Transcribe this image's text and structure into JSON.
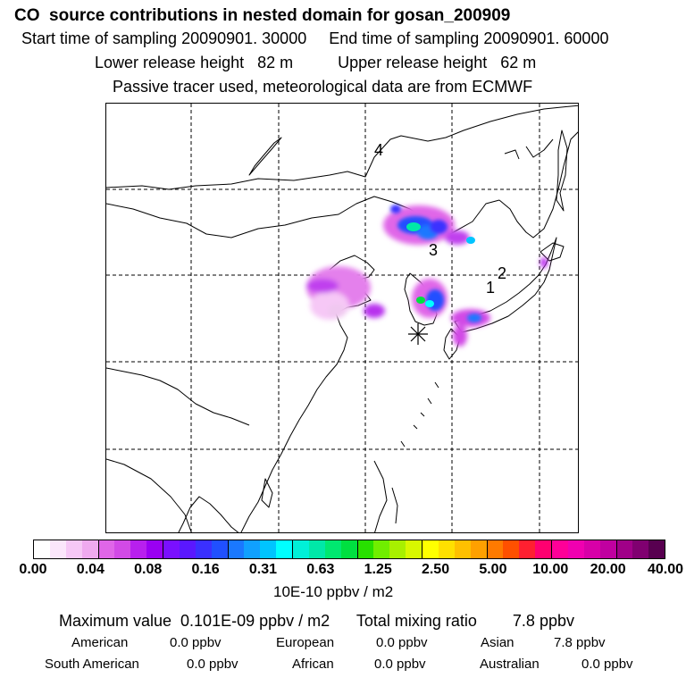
{
  "title": "CO  source contributions in nested domain for gosan_200909",
  "sampling": {
    "start": "Start time of sampling 20090901. 30000",
    "end": "End time of sampling 20090901. 60000"
  },
  "release": {
    "lower": "Lower release height   82 m",
    "upper": "Upper release height   62 m"
  },
  "tracer_note": "Passive tracer used, meteorological data are from ECMWF",
  "map": {
    "source_labels": [
      "1",
      "2",
      "3",
      "4"
    ],
    "receptor_marker": "star-marker"
  },
  "colorbar": {
    "tick_labels": [
      "0.00",
      "0.04",
      "0.08",
      "0.16",
      "0.31",
      "0.63",
      "1.25",
      "2.50",
      "5.00",
      "10.00",
      "20.00",
      "40.00"
    ],
    "colors": [
      "#ffffff",
      "#fbe6fb",
      "#f6c8f6",
      "#efaaef",
      "#e066e8",
      "#d24ae6",
      "#b820ee",
      "#9a00f2",
      "#7a10ff",
      "#5a18ff",
      "#3a30ff",
      "#2050ff",
      "#1a78ff",
      "#10a0ff",
      "#00c4ff",
      "#00ffff",
      "#00f0d8",
      "#00e8a8",
      "#00e870",
      "#00e040",
      "#28e000",
      "#70ee00",
      "#a8f000",
      "#d8f800",
      "#ffff00",
      "#ffe000",
      "#ffc000",
      "#ffa000",
      "#ff7a00",
      "#ff5000",
      "#ff2030",
      "#ff0070",
      "#ff0098",
      "#f000b0",
      "#d800a8",
      "#c000a0",
      "#a00088",
      "#800070",
      "#580050"
    ],
    "units": "10E-10 ppbv / m2"
  },
  "summary": {
    "maximum": "Maximum value  0.101E-09 ppbv / m2",
    "total_label": "Total mixing ratio",
    "total_value": "7.8 ppbv"
  },
  "regions": [
    {
      "name": "American",
      "value": "0.0 ppbv"
    },
    {
      "name": "European",
      "value": "0.0 ppbv"
    },
    {
      "name": "Asian",
      "value": "7.8 ppbv"
    },
    {
      "name": "South American",
      "value": "0.0 ppbv"
    },
    {
      "name": "African",
      "value": "0.0 ppbv"
    },
    {
      "name": "Australian",
      "value": "0.0 ppbv"
    }
  ]
}
